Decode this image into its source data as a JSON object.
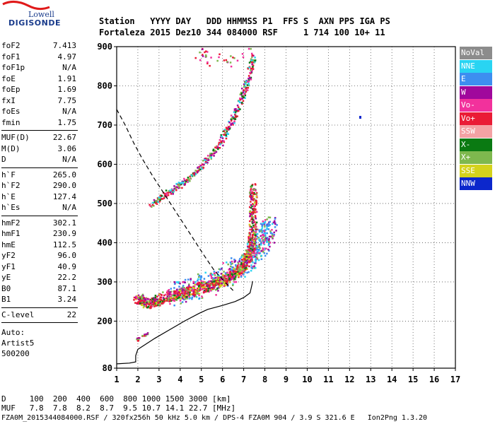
{
  "logo": {
    "line1": "Lowell",
    "line2": "DIGISONDE"
  },
  "header": {
    "line1": "Station   YYYY DAY   DDD HHMMSS P1  FFS S  AXN PPS IGA PS",
    "line2": "Fortaleza 2015 Dez10 344 084000 RSF     1 714 100 10+ 11"
  },
  "params": {
    "group1": [
      {
        "k": "foF2",
        "v": "7.413"
      },
      {
        "k": "foF1",
        "v": "4.97"
      },
      {
        "k": "foF1p",
        "v": "N/A"
      },
      {
        "k": "foE",
        "v": "1.91"
      },
      {
        "k": "foEp",
        "v": "1.69"
      },
      {
        "k": "fxI",
        "v": "7.75"
      },
      {
        "k": "foEs",
        "v": "N/A"
      },
      {
        "k": "fmin",
        "v": "1.75"
      }
    ],
    "group2": [
      {
        "k": "MUF(D)",
        "v": "22.67"
      },
      {
        "k": "M(D)",
        "v": "3.06"
      },
      {
        "k": "D",
        "v": "N/A"
      }
    ],
    "group3": [
      {
        "k": "h`F",
        "v": "265.0"
      },
      {
        "k": "h`F2",
        "v": "290.0"
      },
      {
        "k": "h`E",
        "v": "127.4"
      },
      {
        "k": "h`Es",
        "v": "N/A"
      }
    ],
    "group4": [
      {
        "k": "hmF2",
        "v": "302.1"
      },
      {
        "k": "hmF1",
        "v": "230.9"
      },
      {
        "k": "hmE",
        "v": "112.5"
      },
      {
        "k": "yF2",
        "v": "96.0"
      },
      {
        "k": "yF1",
        "v": "40.9"
      },
      {
        "k": "yE",
        "v": "22.2"
      },
      {
        "k": "B0",
        "v": "87.1"
      },
      {
        "k": "B1",
        "v": "3.24"
      }
    ],
    "group5": [
      {
        "k": "C-level",
        "v": "22"
      }
    ],
    "auto": [
      "Auto:",
      "Artist5",
      "500200"
    ]
  },
  "footer": {
    "d_row": "D     100  200  400  600  800 1000 1500 3000 [km]",
    "muf_row": "MUF   7.8  7.8  8.2  8.7  9.5 10.7 14.1 22.7 [MHz]",
    "file_row": "FZA0M_2015344084000.RSF / 320fx256h 50 kHz 5.0 km / DPS-4 FZA0M 904 / 3.9 S 321.6 E   Ion2Png 1.3.20"
  },
  "legend": [
    {
      "label": "NoVal",
      "color": "#8c8c8c"
    },
    {
      "label": "NNE",
      "color": "#29d4f2"
    },
    {
      "label": "E",
      "color": "#3d8ef0"
    },
    {
      "label": "W",
      "color": "#a0089c"
    },
    {
      "label": "Vo-",
      "color": "#f2319c"
    },
    {
      "label": "Vo+",
      "color": "#ea1b35"
    },
    {
      "label": "SSW",
      "color": "#f4a2a4"
    },
    {
      "label": "X-",
      "color": "#0a7a12"
    },
    {
      "label": "X+",
      "color": "#7eb84e"
    },
    {
      "label": "SSE",
      "color": "#d4d21c"
    },
    {
      "label": "NNW",
      "color": "#0c27cc"
    }
  ],
  "chart_data": {
    "type": "scatter",
    "xlim": [
      1,
      17
    ],
    "ylim": [
      80,
      900
    ],
    "x_ticks": [
      1,
      2,
      3,
      4,
      5,
      6,
      7,
      8,
      9,
      10,
      11,
      12,
      13,
      14,
      15,
      16,
      17
    ],
    "y_ticks": [
      80,
      200,
      300,
      400,
      500,
      600,
      700,
      800,
      900
    ],
    "grid": true,
    "legend_position": "right",
    "traces": {
      "o_trace_low": [
        [
          1.9,
          150
        ],
        [
          2.0,
          158
        ],
        [
          2.2,
          165
        ],
        [
          2.5,
          170
        ]
      ],
      "f_trace": [
        [
          1.9,
          262
        ],
        [
          2.2,
          250
        ],
        [
          2.6,
          248
        ],
        [
          3.0,
          258
        ],
        [
          3.5,
          266
        ],
        [
          4.0,
          272
        ],
        [
          4.5,
          280
        ],
        [
          5.0,
          287
        ],
        [
          5.5,
          295
        ],
        [
          6.0,
          305
        ],
        [
          6.5,
          320
        ],
        [
          6.9,
          340
        ],
        [
          7.2,
          365
        ],
        [
          7.35,
          400
        ],
        [
          7.4,
          450
        ],
        [
          7.42,
          500
        ],
        [
          7.42,
          545
        ]
      ],
      "x_trace": [
        [
          3.5,
          270
        ],
        [
          4.5,
          285
        ],
        [
          5.5,
          300
        ],
        [
          6.5,
          330
        ],
        [
          7.3,
          360
        ],
        [
          7.7,
          390
        ],
        [
          8.0,
          420
        ],
        [
          8.3,
          450
        ]
      ],
      "multi_f": [
        [
          2.6,
          500
        ],
        [
          3.3,
          525
        ],
        [
          4.0,
          550
        ],
        [
          4.6,
          575
        ],
        [
          5.2,
          610
        ],
        [
          5.8,
          650
        ],
        [
          6.3,
          700
        ],
        [
          6.8,
          760
        ],
        [
          7.2,
          820
        ],
        [
          7.45,
          880
        ]
      ],
      "high_scatter": [
        [
          4.8,
          890
        ],
        [
          5.2,
          895
        ],
        [
          4.9,
          860
        ],
        [
          6.3,
          870
        ],
        [
          7.6,
          900
        ]
      ]
    },
    "profile_solid": [
      [
        1.0,
        91
      ],
      [
        1.6,
        93
      ],
      [
        1.9,
        96
      ],
      [
        1.9,
        112
      ],
      [
        2.0,
        128
      ],
      [
        2.8,
        156
      ],
      [
        3.5,
        178
      ],
      [
        4.2,
        200
      ],
      [
        4.9,
        220
      ],
      [
        5.3,
        230
      ],
      [
        6.0,
        240
      ],
      [
        6.6,
        250
      ],
      [
        7.0,
        260
      ],
      [
        7.3,
        272
      ],
      [
        7.4,
        295
      ],
      [
        7.413,
        302
      ]
    ],
    "profile_dashed": [
      [
        1.0,
        740
      ],
      [
        1.4,
        700
      ],
      [
        1.8,
        655
      ],
      [
        2.2,
        615
      ],
      [
        2.7,
        570
      ],
      [
        3.3,
        520
      ],
      [
        3.9,
        470
      ],
      [
        4.5,
        420
      ],
      [
        5.1,
        370
      ],
      [
        5.6,
        330
      ],
      [
        6.1,
        300
      ],
      [
        6.5,
        278
      ]
    ]
  }
}
